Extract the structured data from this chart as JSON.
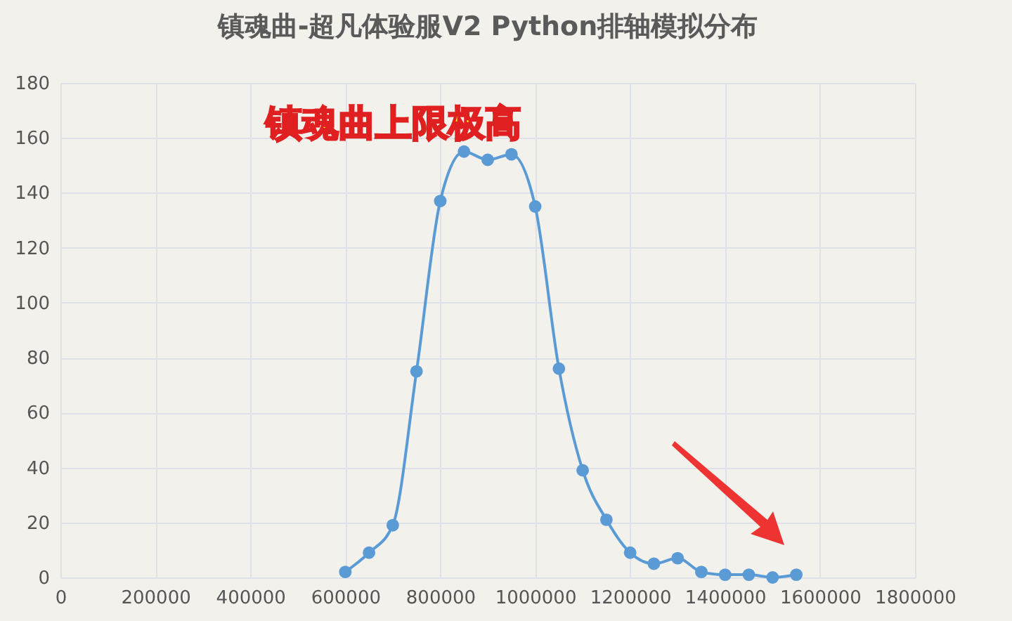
{
  "chart_data": {
    "type": "line",
    "title": "镇魂曲-超凡体验服V2 Python排轴模拟分布",
    "annotations": [
      "镇魂曲上限极高"
    ],
    "x": [
      600000,
      650000,
      700000,
      750000,
      800000,
      850000,
      900000,
      950000,
      1000000,
      1050000,
      1100000,
      1150000,
      1200000,
      1250000,
      1300000,
      1350000,
      1400000,
      1450000,
      1500000,
      1550000
    ],
    "series": [
      {
        "color": "#5b9bd5",
        "values": [
          2,
          9,
          19,
          75,
          137,
          155,
          152,
          154,
          135,
          76,
          39,
          21,
          9,
          5,
          7,
          2,
          1,
          1,
          0,
          1
        ]
      }
    ],
    "xlim": [
      0,
      1800000
    ],
    "xticks": [
      0,
      200000,
      400000,
      600000,
      800000,
      1000000,
      1200000,
      1400000,
      1600000,
      1800000
    ],
    "ylim": [
      0,
      180
    ],
    "yticks": [
      0,
      20,
      40,
      60,
      80,
      100,
      120,
      140,
      160,
      180
    ],
    "grid": true,
    "marker": "circle",
    "legend": false
  }
}
